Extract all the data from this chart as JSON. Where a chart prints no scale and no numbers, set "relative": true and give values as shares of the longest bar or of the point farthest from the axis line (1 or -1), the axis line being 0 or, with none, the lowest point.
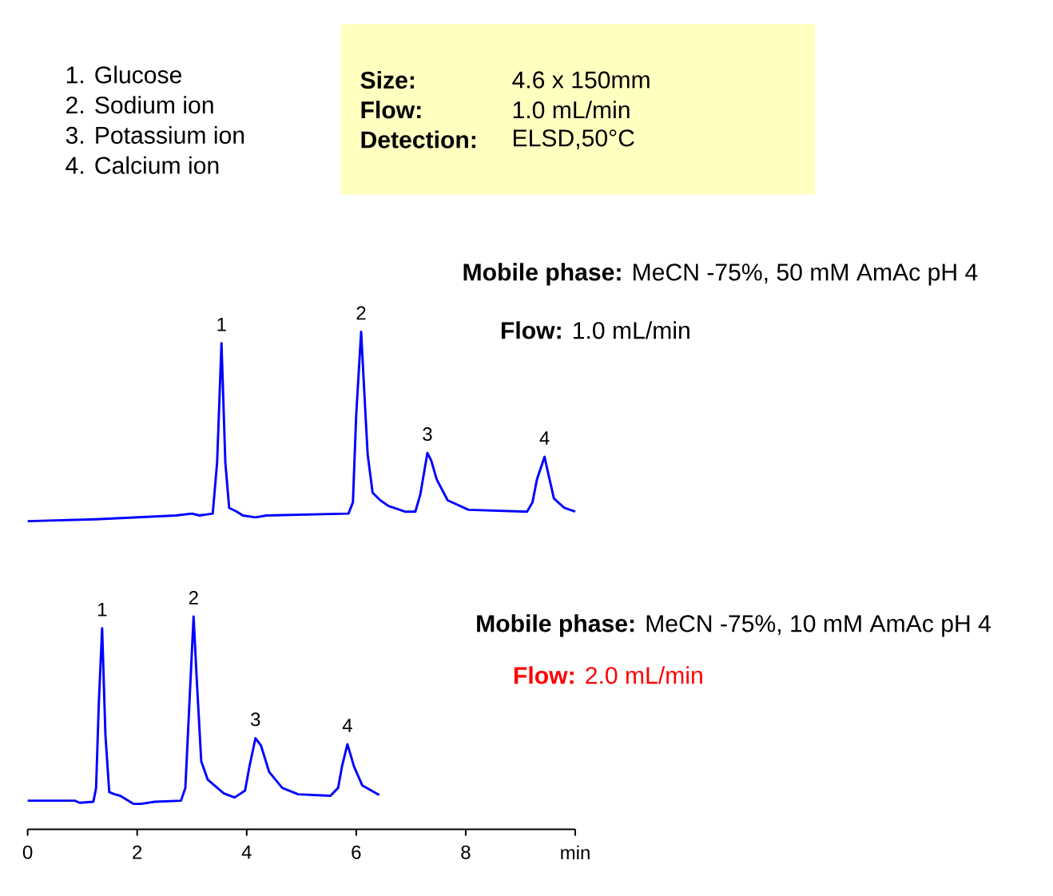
{
  "chart_data": [
    {
      "type": "other",
      "annotations": [
        "1. Glucose",
        "2. Sodium ion",
        "3. Potassium ion",
        "4. Calcium ion"
      ]
    },
    {
      "type": "other",
      "color": "#ffffc0",
      "annotations": [
        "Size:",
        "4.6 x 150mm",
        "Flow:",
        "1.0 mL/min",
        "Detection:",
        "ELSD,50°C"
      ]
    },
    {
      "type": "line",
      "relative": true,
      "xlim": [
        0,
        10
      ],
      "tick_labels": false,
      "color": "#0000ff",
      "x": [
        0,
        1.25,
        2.71,
        3.0,
        3.14,
        3.38,
        3.46,
        3.54,
        3.61,
        3.68,
        3.82,
        3.93,
        4.16,
        4.36,
        5.86,
        5.94,
        6.0,
        6.09,
        6.17,
        6.21,
        6.3,
        6.44,
        6.59,
        6.89,
        7.08,
        7.17,
        7.3,
        7.37,
        7.47,
        7.67,
        8.05,
        9.12,
        9.22,
        9.3,
        9.44,
        9.5,
        9.61,
        9.8,
        10.0
      ],
      "values": [
        0,
        0.01,
        0.03,
        0.04,
        0.03,
        0.04,
        0.31,
        0.94,
        0.31,
        0.07,
        0.05,
        0.03,
        0.02,
        0.03,
        0.04,
        0.1,
        0.56,
        1,
        0.56,
        0.35,
        0.15,
        0.11,
        0.08,
        0.05,
        0.05,
        0.14,
        0.36,
        0.32,
        0.22,
        0.11,
        0.06,
        0.05,
        0.1,
        0.22,
        0.34,
        0.26,
        0.12,
        0.07,
        0.05
      ],
      "annotations": [
        "**Mobile phase:** MeCN -75%, 50 mM AmAc pH 4",
        "**Flow:** 1.0 mL/min",
        {
          "text": "1",
          "x": 3.54,
          "y": 0.94
        },
        {
          "text": "2",
          "x": 6.09,
          "y": 1
        },
        {
          "text": "3",
          "x": 7.3,
          "y": 0.36
        },
        {
          "text": "4",
          "x": 9.44,
          "y": 0.34
        }
      ]
    },
    {
      "type": "line",
      "relative": true,
      "xlim": [
        0,
        10
      ],
      "xticks": [
        0,
        2,
        4,
        6,
        8,
        {
          "value": 10,
          "label": "min"
        }
      ],
      "color": "#0000ff",
      "x": [
        0,
        0.86,
        0.95,
        1.2,
        1.25,
        1.3,
        1.36,
        1.42,
        1.49,
        1.59,
        1.69,
        1.93,
        2.07,
        2.32,
        2.8,
        2.88,
        2.95,
        3.03,
        3.09,
        3.17,
        3.29,
        3.58,
        3.78,
        3.97,
        4.05,
        4.16,
        4.26,
        4.41,
        4.65,
        4.94,
        5.53,
        5.67,
        5.74,
        5.84,
        5.96,
        6.11,
        6.42
      ],
      "values": [
        0.135,
        0.135,
        0.125,
        0.13,
        0.195,
        0.595,
        0.945,
        0.445,
        0.175,
        0.165,
        0.158,
        0.12,
        0.12,
        0.13,
        0.135,
        0.195,
        0.57,
        1,
        0.695,
        0.32,
        0.233,
        0.17,
        0.15,
        0.182,
        0.295,
        0.428,
        0.395,
        0.27,
        0.195,
        0.165,
        0.158,
        0.195,
        0.295,
        0.4,
        0.295,
        0.207,
        0.162
      ],
      "annotations": [
        "**Mobile phase:** MeCN -75%, 10 mM AmAc pH 4",
        "**Flow:** 2.0 mL/min",
        {
          "text": "1",
          "x": 1.36,
          "y": 0.945
        },
        {
          "text": "2",
          "x": 3.03,
          "y": 1
        },
        {
          "text": "3",
          "x": 4.16,
          "y": 0.428
        },
        {
          "text": "4",
          "x": 5.84,
          "y": 0.4
        }
      ]
    }
  ]
}
